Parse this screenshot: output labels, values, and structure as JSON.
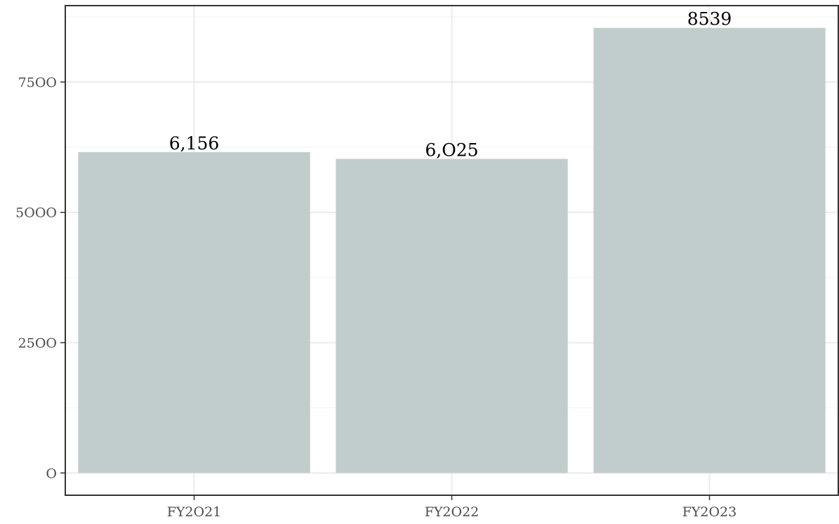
{
  "chart_data": {
    "type": "bar",
    "categories": [
      "FY2O21",
      "FY2O22",
      "FY2O23"
    ],
    "values": [
      6156,
      6025,
      8539
    ],
    "data_labels": [
      "6,156",
      "6,O25",
      "8539"
    ],
    "title": "",
    "xlabel": "",
    "ylabel": "",
    "ylim": [
      -427,
      8966
    ],
    "y_ticks": [
      0,
      2500,
      5000,
      7500
    ],
    "y_tick_labels": [
      "O",
      "25OO",
      "5OOO",
      "75OO"
    ],
    "y_minor_ticks": [
      1250,
      3750,
      6250,
      8750
    ],
    "grid": true,
    "legend": "none",
    "colors": {
      "bar": "#c1cdcd",
      "panel_border": "#333333",
      "grid": "#ebebeb",
      "background": "#ffffff"
    }
  }
}
